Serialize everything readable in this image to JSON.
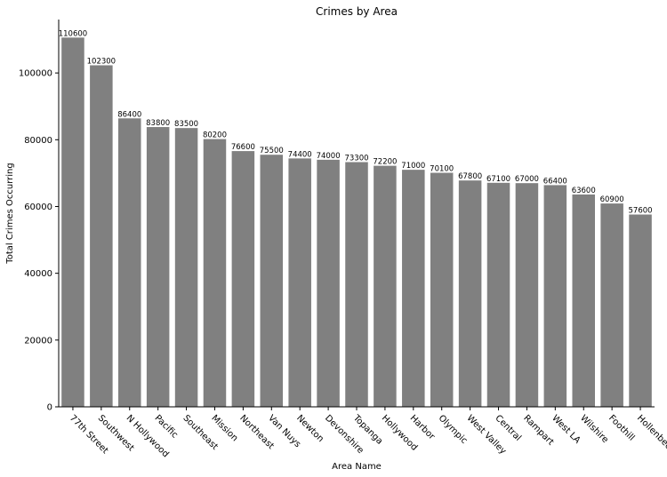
{
  "chart_data": {
    "type": "bar",
    "title": "Crimes by Area",
    "xlabel": "Area Name",
    "ylabel": "Total Crimes Occurring",
    "ylim": [
      0,
      116000
    ],
    "yticks": [
      0,
      20000,
      40000,
      60000,
      80000,
      100000
    ],
    "grid": false,
    "bar_color": "#808080",
    "categories": [
      "77th Street",
      "Southwest",
      "N Hollywood",
      "Pacific",
      "Southeast",
      "Mission",
      "Northeast",
      "Van Nuys",
      "Newton",
      "Devonshire",
      "Topanga",
      "Hollywood",
      "Harbor",
      "Olympic",
      "West Valley",
      "Central",
      "Rampart",
      "West LA",
      "Wilshire",
      "Foothill",
      "Hollenbeck"
    ],
    "values": [
      110600,
      102300,
      86400,
      83800,
      83500,
      80200,
      76600,
      75500,
      74400,
      74000,
      73300,
      72200,
      71000,
      70100,
      67800,
      67100,
      67000,
      66400,
      63600,
      60900,
      57600
    ]
  }
}
